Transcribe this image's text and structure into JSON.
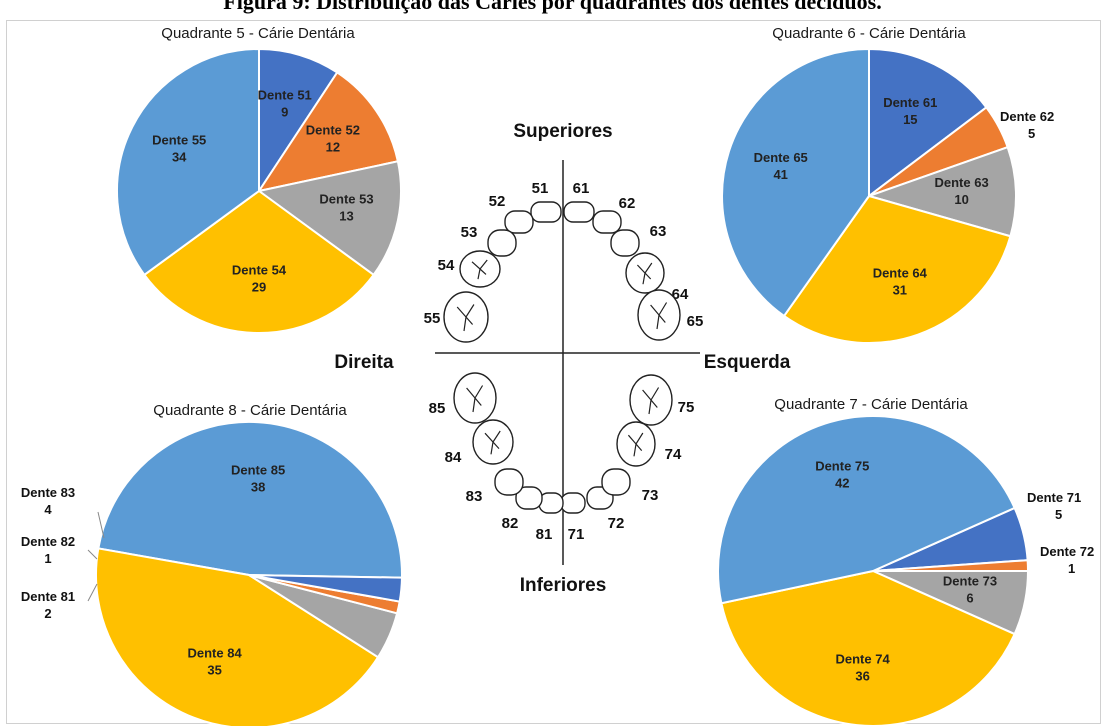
{
  "figure_title": "Figura 9: Distribuição das Cáries por quadrantes dos dentes decíduos.",
  "diagram": {
    "superiores": "Superiores",
    "inferiores": "Inferiores",
    "direita": "Direita",
    "esquerda": "Esquerda",
    "teeth": [
      "51",
      "52",
      "53",
      "54",
      "55",
      "61",
      "62",
      "63",
      "64",
      "65",
      "71",
      "72",
      "73",
      "74",
      "75",
      "81",
      "82",
      "83",
      "84",
      "85"
    ]
  },
  "colors": {
    "dark_blue": "#4472C4",
    "orange": "#ED7D31",
    "gray": "#A5A5A5",
    "yellow": "#FFC000",
    "light_blue": "#5B9BD5"
  },
  "chart_data": [
    {
      "type": "pie",
      "title": "Quadrante 5 - Cárie Dentária",
      "categories": [
        "Dente 51",
        "Dente 52",
        "Dente 53",
        "Dente 54",
        "Dente 55"
      ],
      "values": [
        9,
        12,
        13,
        29,
        34
      ],
      "colors": [
        "#4472C4",
        "#ED7D31",
        "#A5A5A5",
        "#FFC000",
        "#5B9BD5"
      ]
    },
    {
      "type": "pie",
      "title": "Quadrante 6 - Cárie Dentária",
      "categories": [
        "Dente 61",
        "Dente 62",
        "Dente 63",
        "Dente 64",
        "Dente 65"
      ],
      "values": [
        15,
        5,
        10,
        31,
        41
      ],
      "colors": [
        "#4472C4",
        "#ED7D31",
        "#A5A5A5",
        "#FFC000",
        "#5B9BD5"
      ]
    },
    {
      "type": "pie",
      "title": "Quadrante 8 - Cárie Dentária",
      "categories": [
        "Dente 81",
        "Dente 82",
        "Dente 83",
        "Dente 84",
        "Dente 85"
      ],
      "values": [
        2,
        1,
        4,
        35,
        38
      ],
      "colors": [
        "#4472C4",
        "#ED7D31",
        "#A5A5A5",
        "#FFC000",
        "#5B9BD5"
      ],
      "start_category": "Dente 85",
      "direction": "counterclockwise"
    },
    {
      "type": "pie",
      "title": "Quadrante 7 - Cárie Dentária",
      "categories": [
        "Dente 71",
        "Dente 72",
        "Dente 73",
        "Dente 74",
        "Dente 75"
      ],
      "values": [
        5,
        1,
        6,
        36,
        42
      ],
      "colors": [
        "#4472C4",
        "#ED7D31",
        "#A5A5A5",
        "#FFC000",
        "#5B9BD5"
      ]
    }
  ]
}
